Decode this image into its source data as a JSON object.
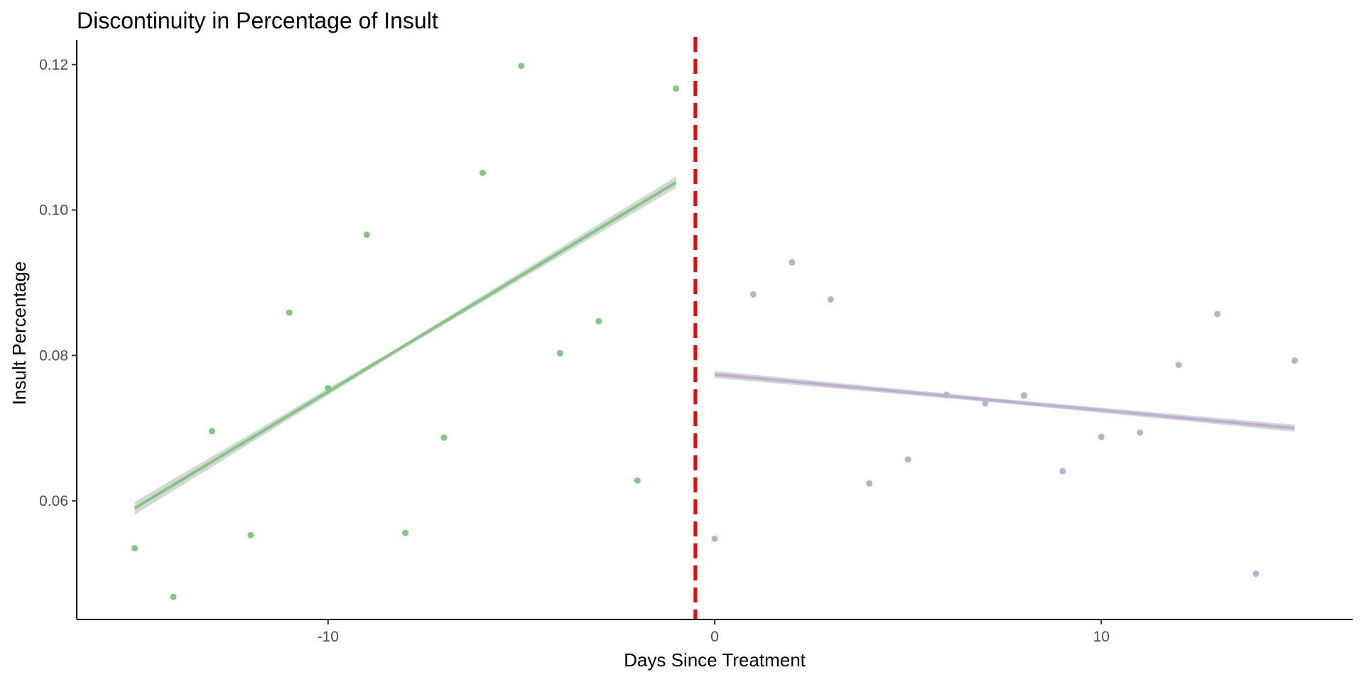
{
  "chart_data": {
    "type": "scatter",
    "title": "Discontinuity in Percentage of Insult",
    "xlabel": "Days Since Treatment",
    "ylabel": "Insult Percentage",
    "xlim": [
      -16.5,
      16.5
    ],
    "ylim": [
      0.0437,
      0.1234
    ],
    "x_ticks": [
      -10,
      0,
      10
    ],
    "x_tick_labels": [
      "-10",
      "0",
      "10"
    ],
    "y_ticks": [
      0.06,
      0.08,
      0.1,
      0.12
    ],
    "y_tick_labels": [
      "0.06",
      "0.08",
      "0.10",
      "0.12"
    ],
    "cutoff": -0.5,
    "cutoff_color": "#ff0000",
    "grid": false,
    "legend": "none",
    "series": [
      {
        "color": "#7fc97f",
        "points": [
          {
            "x": -15,
            "y": 0.0535
          },
          {
            "x": -14,
            "y": 0.0468
          },
          {
            "x": -13,
            "y": 0.0696
          },
          {
            "x": -12,
            "y": 0.0553
          },
          {
            "x": -11,
            "y": 0.0859
          },
          {
            "x": -10,
            "y": 0.0755
          },
          {
            "x": -9,
            "y": 0.0966
          },
          {
            "x": -8,
            "y": 0.0556
          },
          {
            "x": -7,
            "y": 0.0687
          },
          {
            "x": -6,
            "y": 0.1051
          },
          {
            "x": -5,
            "y": 0.1198
          },
          {
            "x": -4,
            "y": 0.0803
          },
          {
            "x": -3,
            "y": 0.0847
          },
          {
            "x": -2,
            "y": 0.0628
          },
          {
            "x": -1,
            "y": 0.1167
          }
        ],
        "fit": {
          "x": [
            -15,
            -1
          ],
          "y": [
            0.059,
            0.1038
          ]
        }
      },
      {
        "color": "#beaed4",
        "points": [
          {
            "x": 0,
            "y": 0.0548
          },
          {
            "x": 1,
            "y": 0.0884
          },
          {
            "x": 2,
            "y": 0.0928
          },
          {
            "x": 3,
            "y": 0.0877
          },
          {
            "x": 4,
            "y": 0.0624
          },
          {
            "x": 5,
            "y": 0.0657
          },
          {
            "x": 6,
            "y": 0.0746
          },
          {
            "x": 7,
            "y": 0.0734
          },
          {
            "x": 8,
            "y": 0.0745
          },
          {
            "x": 9,
            "y": 0.0641
          },
          {
            "x": 10,
            "y": 0.0688
          },
          {
            "x": 11,
            "y": 0.0694
          },
          {
            "x": 12,
            "y": 0.0787
          },
          {
            "x": 13,
            "y": 0.0857
          },
          {
            "x": 14,
            "y": 0.05
          },
          {
            "x": 15,
            "y": 0.0793
          }
        ],
        "fit": {
          "x": [
            0,
            15
          ],
          "y": [
            0.0774,
            0.07
          ]
        }
      }
    ]
  }
}
